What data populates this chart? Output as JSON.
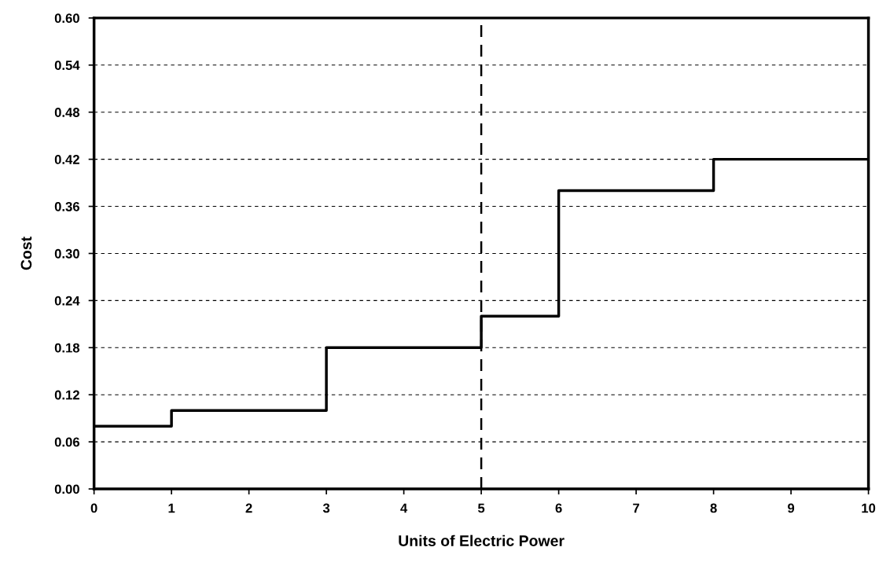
{
  "chart_data": {
    "type": "step",
    "xlabel": "Units of Electric Power",
    "ylabel": "Cost",
    "x": [
      0,
      1,
      3,
      5,
      6,
      8,
      10
    ],
    "series": [
      {
        "color": "#000000",
        "values": [
          0.08,
          0.1,
          0.18,
          0.22,
          0.38,
          0.42,
          0.42
        ]
      }
    ],
    "xlim": [
      0,
      10
    ],
    "xticks": [
      0,
      1,
      2,
      3,
      4,
      5,
      6,
      7,
      8,
      9,
      10
    ],
    "ylim": [
      0,
      0.6
    ],
    "yticks": [
      {
        "value": 0,
        "label": "0.00"
      },
      {
        "value": 0.06,
        "label": "0.06"
      },
      {
        "value": 0.12,
        "label": "0.12"
      },
      {
        "value": 0.18,
        "label": "0.18"
      },
      {
        "value": 0.24,
        "label": "0.24"
      },
      {
        "value": 0.3,
        "label": "0.30"
      },
      {
        "value": 0.36,
        "label": "0.36"
      },
      {
        "value": 0.42,
        "label": "0.42"
      },
      {
        "value": 0.48,
        "label": "0.48"
      },
      {
        "value": 0.54,
        "label": "0.54"
      },
      {
        "value": 0.6,
        "label": "0.60"
      }
    ],
    "grid": "y",
    "ref_lines": [
      {
        "axis": "x",
        "value": 5,
        "color": "#000000",
        "line_style": "dashed"
      }
    ]
  }
}
